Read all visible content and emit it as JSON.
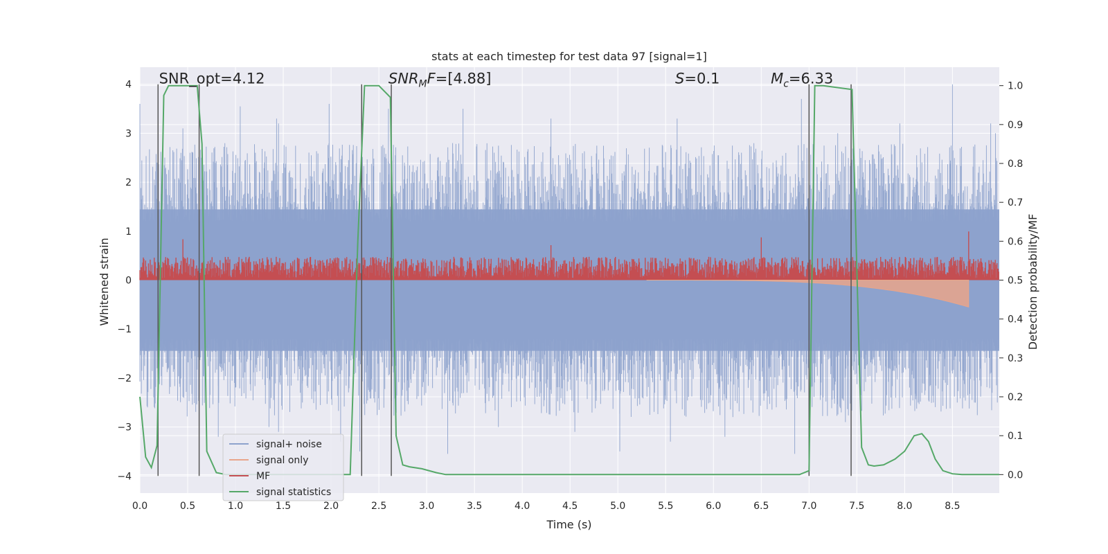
{
  "chart_data": {
    "type": "line",
    "title": "stats at each timestep for test data 97 [signal=1]",
    "xlabel": "Time (s)",
    "ylabel": "Whitened strain",
    "y2label": "Detection probability/MF",
    "xlim": [
      0.0,
      8.99
    ],
    "ylim": [
      -4.35,
      4.35
    ],
    "y2lim": [
      -0.0475,
      1.0475
    ],
    "grid": true,
    "legend_position": "lower-left",
    "xticks": [
      "0.0",
      "0.5",
      "1.0",
      "1.5",
      "2.0",
      "2.5",
      "3.0",
      "3.5",
      "4.0",
      "4.5",
      "5.0",
      "5.5",
      "6.0",
      "6.5",
      "7.0",
      "7.5",
      "8.0",
      "8.5"
    ],
    "yticks": [
      "4",
      "3",
      "2",
      "1",
      "0",
      "−1",
      "−2",
      "−3",
      "−4"
    ],
    "y2ticks": [
      "1.0",
      "0.9",
      "0.8",
      "0.7",
      "0.6",
      "0.5",
      "0.4",
      "0.3",
      "0.2",
      "0.1",
      "0.0"
    ],
    "annotations": [
      {
        "label": "SNR_opt",
        "value": "=4.12",
        "x": 0.2
      },
      {
        "label": "SNR",
        "sub": "M",
        "label2": "F",
        "value": "=[4.88]",
        "x": 2.6
      },
      {
        "label": "S",
        "value": "=0.1",
        "x": 5.6
      },
      {
        "label": "M",
        "sub": "c",
        "value": "=6.33",
        "x": 6.6
      }
    ],
    "series": [
      {
        "name": "signal+ noise",
        "axis": "left",
        "color": "#8da2cc",
        "style": "noise",
        "envelope": [
          -1.7,
          1.7
        ],
        "peaks": [
          {
            "x": 0.0,
            "y": 3.6
          },
          {
            "x": 0.08,
            "y": -2.6
          },
          {
            "x": 0.45,
            "y": 3.1
          },
          {
            "x": 0.82,
            "y": -3.2
          },
          {
            "x": 1.05,
            "y": 3.55
          },
          {
            "x": 1.35,
            "y": -3.0
          },
          {
            "x": 1.45,
            "y": 3.2
          },
          {
            "x": 1.43,
            "y": 3.3
          },
          {
            "x": 1.45,
            "y": -3.1
          },
          {
            "x": 1.7,
            "y": -2.5
          },
          {
            "x": 1.98,
            "y": 3.6
          },
          {
            "x": 2.3,
            "y": -3.5
          },
          {
            "x": 2.1,
            "y": -3.3
          },
          {
            "x": 2.6,
            "y": 3.5
          },
          {
            "x": 3.22,
            "y": -3.55
          },
          {
            "x": 3.38,
            "y": 3.5
          },
          {
            "x": 3.75,
            "y": -3.0
          },
          {
            "x": 4.3,
            "y": 3.3
          },
          {
            "x": 4.55,
            "y": -3.1
          },
          {
            "x": 5.02,
            "y": -3.5
          },
          {
            "x": 5.55,
            "y": -3.3
          },
          {
            "x": 5.62,
            "y": 3.3
          },
          {
            "x": 6.12,
            "y": -3.2
          },
          {
            "x": 6.92,
            "y": 3.7
          },
          {
            "x": 6.85,
            "y": -3.55
          },
          {
            "x": 7.3,
            "y": 3.0
          },
          {
            "x": 7.38,
            "y": -2.9
          },
          {
            "x": 7.95,
            "y": 3.2
          },
          {
            "x": 8.5,
            "y": 4.0
          },
          {
            "x": 8.62,
            "y": -2.4
          },
          {
            "x": 8.9,
            "y": 3.2
          },
          {
            "x": 8.95,
            "y": 3.0
          }
        ]
      },
      {
        "name": "signal only",
        "axis": "left",
        "color": "#e9a58a",
        "style": "chirp",
        "x_start": 5.3,
        "x_end": 8.67,
        "min_at_end": -0.55
      },
      {
        "name": "MF",
        "axis": "right",
        "color": "#c44e52",
        "style": "band",
        "baseline": 0.5,
        "band": [
          0.505,
          0.56
        ],
        "peaks": [
          {
            "x": 0.45,
            "y": 0.605
          },
          {
            "x": 4.3,
            "y": 0.59
          },
          {
            "x": 6.5,
            "y": 0.61
          },
          {
            "x": 8.67,
            "y": 0.625
          }
        ]
      },
      {
        "name": "signal statistics",
        "axis": "right",
        "color": "#55a868",
        "style": "line",
        "x": [
          0.0,
          0.06,
          0.12,
          0.18,
          0.25,
          0.3,
          0.4,
          0.5,
          0.6,
          0.65,
          0.7,
          0.8,
          0.9,
          1.0,
          2.2,
          2.28,
          2.35,
          2.4,
          2.5,
          2.62,
          2.68,
          2.75,
          2.82,
          2.95,
          3.1,
          3.2,
          3.3,
          6.9,
          7.0,
          7.06,
          7.15,
          7.45,
          7.55,
          7.62,
          7.68,
          7.78,
          7.9,
          8.0,
          8.1,
          8.18,
          8.25,
          8.32,
          8.4,
          8.5,
          8.6,
          8.99
        ],
        "values": [
          0.2,
          0.045,
          0.018,
          0.075,
          0.975,
          1.0,
          1.0,
          1.0,
          1.0,
          0.85,
          0.06,
          0.005,
          0.0,
          0.0,
          0.0,
          0.6,
          1.0,
          1.0,
          1.0,
          0.97,
          0.1,
          0.025,
          0.02,
          0.015,
          0.005,
          0.0,
          0.0,
          0.0,
          0.01,
          1.0,
          1.0,
          0.99,
          0.07,
          0.025,
          0.022,
          0.025,
          0.04,
          0.06,
          0.1,
          0.105,
          0.085,
          0.04,
          0.01,
          0.002,
          0.0,
          0.0
        ]
      }
    ],
    "vertical_lines": [
      0.19,
      0.62,
      2.32,
      2.63,
      7.0,
      7.44
    ]
  }
}
